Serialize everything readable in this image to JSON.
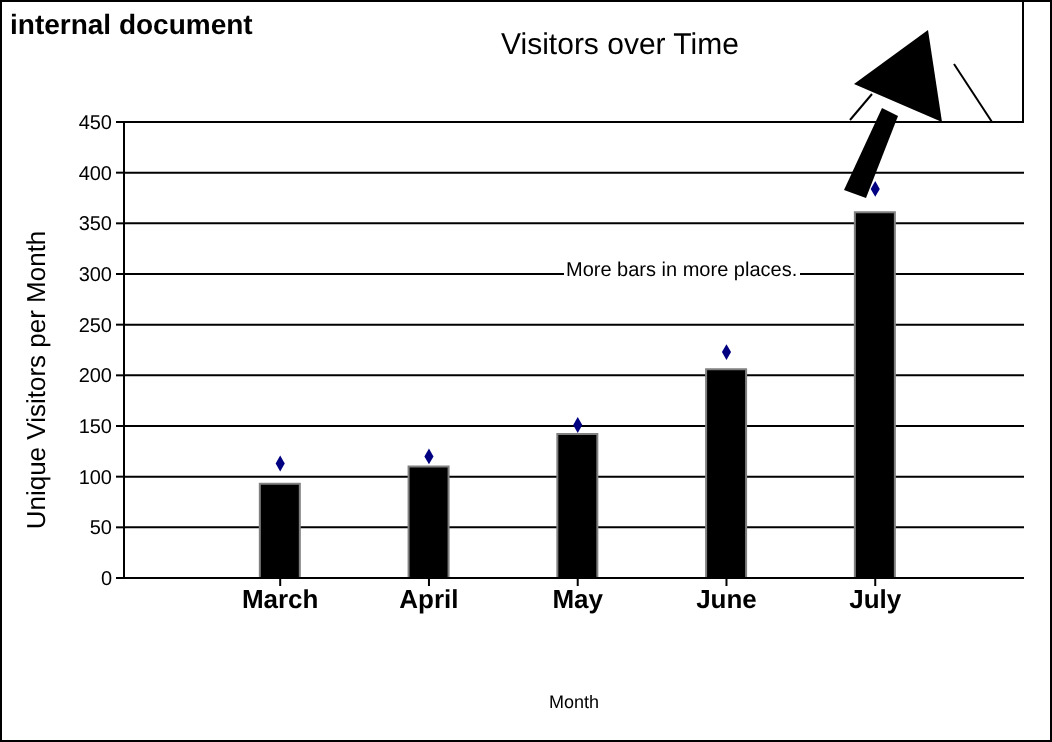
{
  "chart_data": {
    "type": "bar",
    "title": "Visitors over Time",
    "xlabel": "Month",
    "ylabel": "Unique Visitors per Month",
    "categories": [
      "March",
      "April",
      "May",
      "June",
      "July"
    ],
    "series": [
      {
        "color": "#000000",
        "values": [
          93,
          110,
          142,
          206,
          361
        ]
      },
      {
        "type": "scatter",
        "color": "#000080",
        "marker": "diamond",
        "values": [
          113,
          120,
          151,
          223,
          384
        ]
      }
    ],
    "ylim": [
      0,
      450
    ],
    "yticks": [
      0,
      50,
      100,
      150,
      200,
      250,
      300,
      350,
      400,
      450
    ],
    "grid": "y",
    "annotations": [
      "internal document",
      "More bars in more places."
    ]
  }
}
